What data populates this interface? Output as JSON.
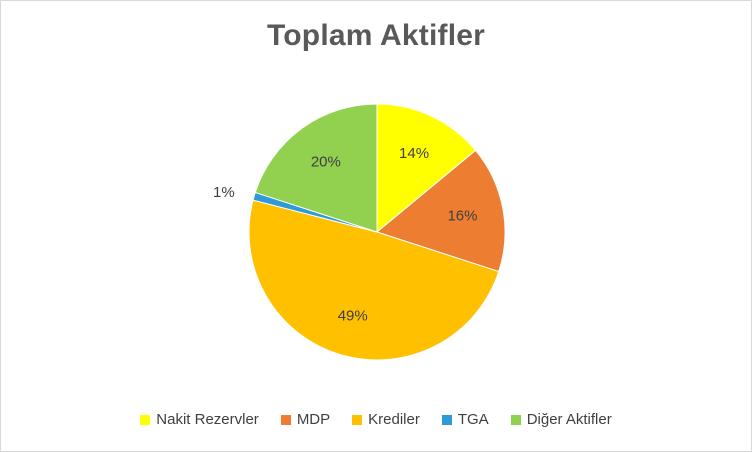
{
  "chart_data": {
    "type": "pie",
    "title": "Toplam Aktifler",
    "slices": [
      {
        "label": "Nakit Rezervler",
        "value": 14,
        "data_label": "14%",
        "color": "#FFFF00"
      },
      {
        "label": "MDP",
        "value": 16,
        "data_label": "16%",
        "color": "#ED7D31"
      },
      {
        "label": "Krediler",
        "value": 49,
        "data_label": "49%",
        "color": "#FFC000"
      },
      {
        "label": "TGA",
        "value": 1,
        "data_label": "1%",
        "color": "#2E9BD6"
      },
      {
        "label": "Diğer Aktifler",
        "value": 20,
        "data_label": "20%",
        "color": "#92D050"
      }
    ],
    "legend_position": "bottom"
  }
}
